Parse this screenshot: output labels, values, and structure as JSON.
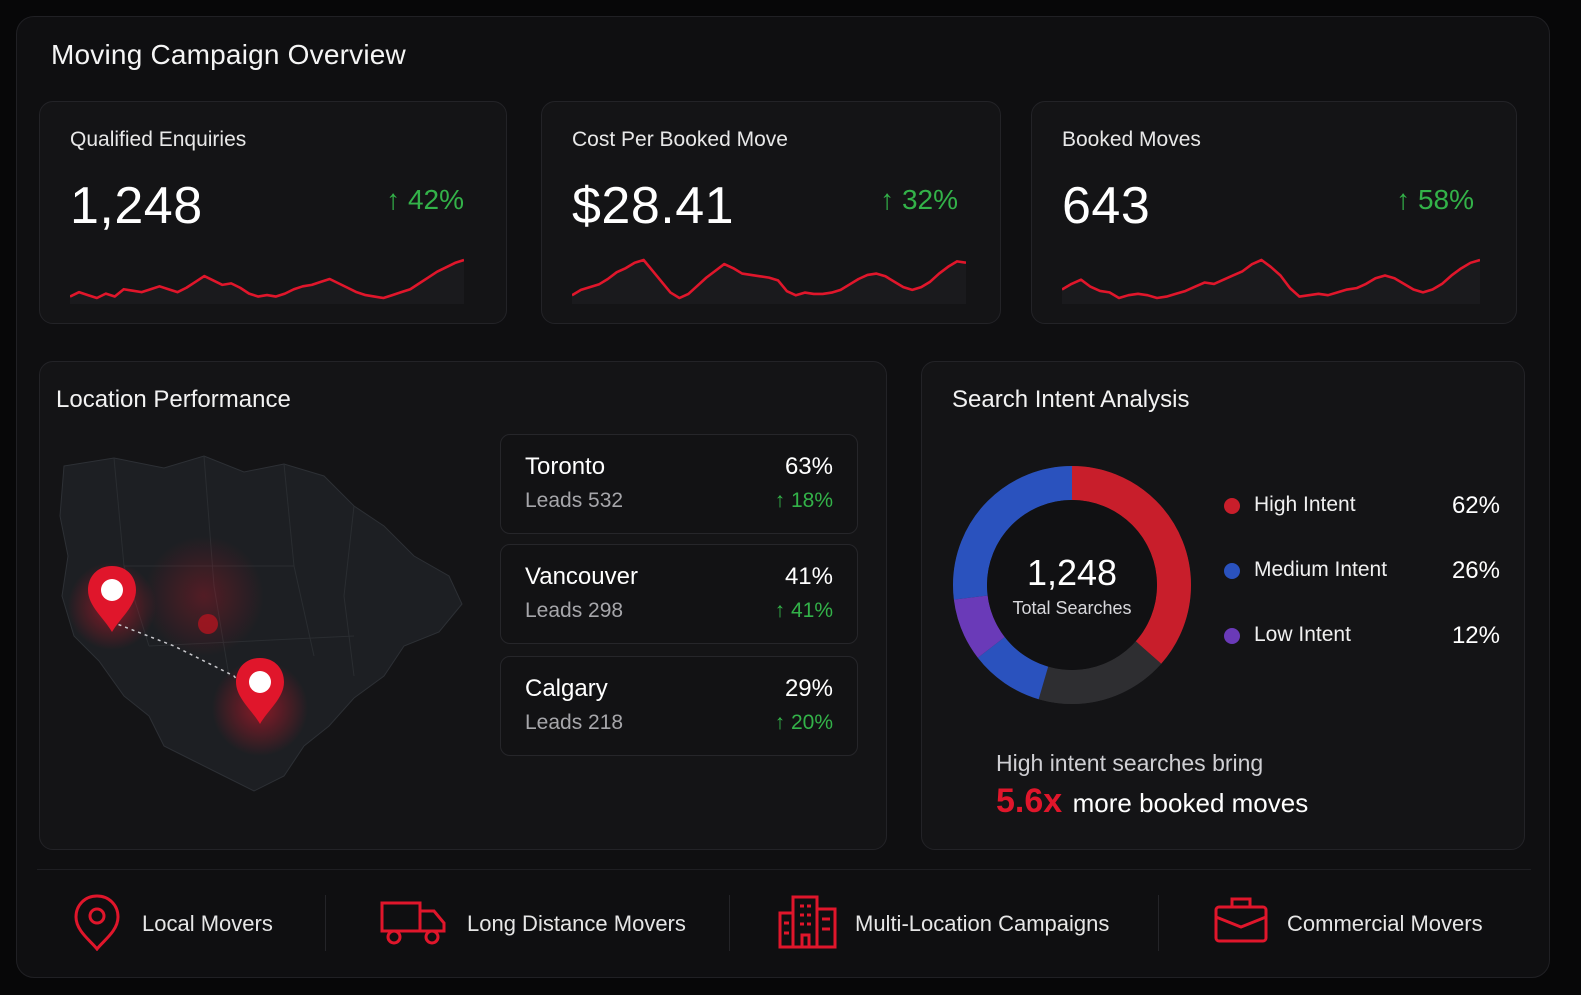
{
  "page": {
    "title": "Moving Campaign Overview"
  },
  "colors": {
    "accent": "#e0162b",
    "positive": "#33b249",
    "high": "#c81e2b",
    "medium": "#2a52be",
    "low": "#6a3ab8",
    "rest": "#2e2e31"
  },
  "kpis": [
    {
      "label": "Qualified Enquiries",
      "value": "1,248",
      "delta": "↑ 42%",
      "trend": [
        30,
        33,
        31,
        29,
        32,
        30,
        35,
        34,
        33,
        35,
        37,
        35,
        33,
        36,
        40,
        44,
        41,
        38,
        39,
        36,
        32,
        30,
        31,
        30,
        32,
        35,
        37,
        38,
        40,
        42,
        39,
        36,
        33,
        31,
        30,
        29,
        31,
        33,
        35,
        39,
        43,
        47,
        50,
        53,
        55
      ]
    },
    {
      "label": "Cost Per Booked Move",
      "value": "$28.41",
      "delta": "↑ 32%",
      "trend": [
        30,
        34,
        36,
        38,
        42,
        47,
        50,
        54,
        56,
        48,
        40,
        32,
        28,
        31,
        37,
        43,
        48,
        53,
        50,
        46,
        45,
        44,
        43,
        41,
        33,
        30,
        32,
        31,
        31,
        32,
        34,
        38,
        42,
        45,
        46,
        44,
        40,
        36,
        34,
        36,
        40,
        46,
        51,
        55,
        54
      ]
    },
    {
      "label": "Booked Moves",
      "value": "643",
      "delta": "↑ 58%",
      "trend": [
        34,
        38,
        41,
        36,
        33,
        32,
        28,
        30,
        31,
        30,
        28,
        29,
        31,
        33,
        36,
        39,
        38,
        41,
        44,
        47,
        52,
        55,
        50,
        44,
        35,
        29,
        30,
        31,
        30,
        32,
        34,
        35,
        38,
        42,
        44,
        42,
        38,
        34,
        32,
        34,
        38,
        44,
        49,
        53,
        55
      ]
    }
  ],
  "location": {
    "title": "Location Performance",
    "cities": [
      {
        "name": "Toronto",
        "leads": "Leads 532",
        "share": "63%",
        "delta": "↑ 18%"
      },
      {
        "name": "Vancouver",
        "leads": "Leads 298",
        "share": "41%",
        "delta": "↑ 41%"
      },
      {
        "name": "Calgary",
        "leads": "Leads 218",
        "share": "29%",
        "delta": "↑ 20%"
      }
    ]
  },
  "intent": {
    "title": "Search Intent Analysis",
    "total": "1,248",
    "total_label": "Total Searches",
    "segments": [
      {
        "name": "High Intent",
        "pct": "62%",
        "value": 62,
        "color": "#c81e2b"
      },
      {
        "name": "Medium Intent",
        "pct": "26%",
        "value": 26,
        "color": "#2a52be"
      },
      {
        "name": "Low Intent",
        "pct": "12%",
        "value": 12,
        "color": "#6a3ab8"
      }
    ],
    "insight_line1": "High intent searches bring",
    "insight_mult": "5.6x",
    "insight_line2": "more booked moves"
  },
  "services": [
    {
      "label": "Local Movers",
      "icon": "map-pin-icon"
    },
    {
      "label": "Long Distance Movers",
      "icon": "truck-icon"
    },
    {
      "label": "Multi-Location Campaigns",
      "icon": "buildings-icon"
    },
    {
      "label": "Commercial Movers",
      "icon": "briefcase-icon"
    }
  ]
}
